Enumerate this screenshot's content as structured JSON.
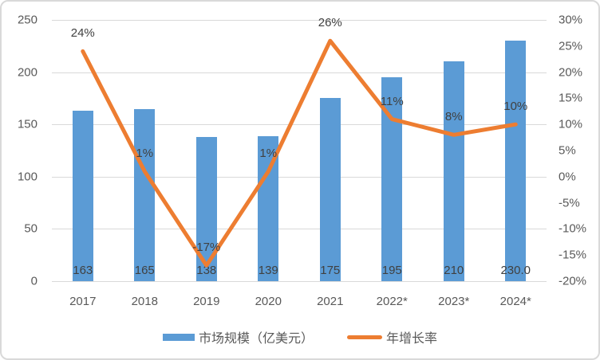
{
  "chart_data": {
    "type": "bar",
    "subtype": "combo-bar-line",
    "categories": [
      "2017",
      "2018",
      "2019",
      "2020",
      "2021",
      "2022*",
      "2023*",
      "2024*"
    ],
    "series": [
      {
        "name": "市场规模（亿美元）",
        "type": "bar",
        "axis": "left",
        "values": [
          163,
          165,
          138,
          139,
          175,
          195,
          210,
          230
        ],
        "labels": [
          "163",
          "165",
          "138",
          "139",
          "175",
          "195",
          "210",
          "230.0"
        ],
        "color": "#5B9BD5"
      },
      {
        "name": "年增长率",
        "type": "line",
        "axis": "right",
        "values": [
          24,
          1,
          -17,
          1,
          26,
          11,
          8,
          10
        ],
        "labels": [
          "24%",
          "1%",
          "-17%",
          "1%",
          "26%",
          "11%",
          "8%",
          "10%"
        ],
        "color": "#ED7D31"
      }
    ],
    "left_axis": {
      "min": 0,
      "max": 250,
      "ticks": [
        "250",
        "200",
        "150",
        "100",
        "50",
        "0"
      ]
    },
    "right_axis": {
      "min": -20,
      "max": 30,
      "ticks": [
        "30%",
        "25%",
        "20%",
        "15%",
        "10%",
        "5%",
        "0%",
        "-5%",
        "-10%",
        "-15%",
        "-20%"
      ]
    },
    "title": "",
    "grid": true,
    "legend_position": "bottom",
    "grid_color": "#D9D9D9",
    "text_color": "#595959",
    "label_color": "#404040"
  }
}
